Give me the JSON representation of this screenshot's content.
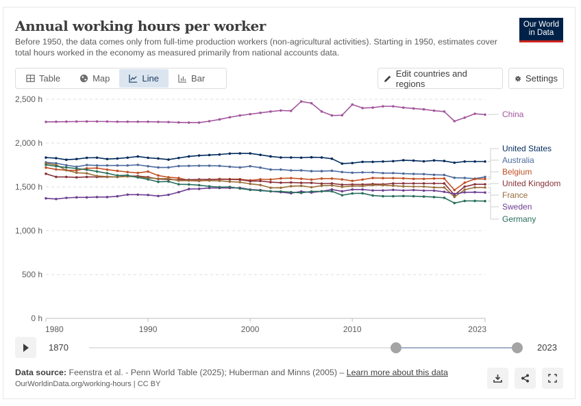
{
  "header": {
    "title": "Annual working hours per worker",
    "subtitle": "Before 1950, the data comes only from full-time production workers (non-agricultural activities). Starting in 1950, estimates cover total hours worked in the economy as measured primarily from national accounts data.",
    "logo_line1": "Our World",
    "logo_line2": "in Data"
  },
  "tabs": [
    {
      "label": "Table",
      "icon": "table-icon",
      "active": false
    },
    {
      "label": "Map",
      "icon": "globe-icon",
      "active": false
    },
    {
      "label": "Line",
      "icon": "line-chart-icon",
      "active": true
    },
    {
      "label": "Bar",
      "icon": "bar-chart-icon",
      "active": false
    }
  ],
  "toolbar": {
    "edit_label": "Edit countries and regions",
    "settings_label": "Settings"
  },
  "timeline": {
    "start_label": "1870",
    "end_label": "2023",
    "range_min": 1870,
    "range_max": 2023,
    "selected_start": 1980,
    "selected_end": 2023
  },
  "footer": {
    "source_prefix": "Data source:",
    "source_text": "Feenstra et al. - Penn World Table (2025); Huberman and Minns (2005) –",
    "learn_more": "Learn more about this data",
    "url_text": "OurWorldinData.org/working-hours | CC BY"
  },
  "chart_data": {
    "type": "line",
    "title": "Annual working hours per worker",
    "xlabel": "",
    "ylabel": "",
    "x_range": [
      1980,
      2023
    ],
    "ylim": [
      0,
      2500
    ],
    "y_ticks": [
      0,
      500,
      1000,
      1500,
      2000,
      2500
    ],
    "y_tick_labels": [
      "0 h",
      "500 h",
      "1,000 h",
      "1,500 h",
      "2,000 h",
      "2,500 h"
    ],
    "x_ticks": [
      1980,
      1990,
      2000,
      2010,
      2023
    ],
    "x_tick_labels": [
      "1980",
      "1990",
      "2000",
      "2010",
      "2023"
    ],
    "grid": "horizontal-dashed",
    "legend": "right",
    "x": [
      1980,
      1981,
      1982,
      1983,
      1984,
      1985,
      1986,
      1987,
      1988,
      1989,
      1990,
      1991,
      1992,
      1993,
      1994,
      1995,
      1996,
      1997,
      1998,
      1999,
      2000,
      2001,
      2002,
      2003,
      2004,
      2005,
      2006,
      2007,
      2008,
      2009,
      2010,
      2011,
      2012,
      2013,
      2014,
      2015,
      2016,
      2017,
      2018,
      2019,
      2020,
      2021,
      2022,
      2023
    ],
    "series": [
      {
        "name": "China",
        "color": "#a2559c",
        "values": [
          2242,
          2244,
          2245,
          2246,
          2247,
          2247,
          2246,
          2244,
          2244,
          2244,
          2244,
          2242,
          2240,
          2236,
          2234,
          2234,
          2250,
          2270,
          2295,
          2315,
          2330,
          2345,
          2360,
          2372,
          2368,
          2475,
          2455,
          2360,
          2315,
          2318,
          2440,
          2400,
          2405,
          2420,
          2420,
          2405,
          2395,
          2385,
          2370,
          2360,
          2250,
          2290,
          2335,
          2325
        ]
      },
      {
        "name": "United States",
        "color": "#00295b",
        "values": [
          1835,
          1828,
          1810,
          1818,
          1832,
          1834,
          1818,
          1824,
          1834,
          1847,
          1832,
          1824,
          1812,
          1830,
          1848,
          1858,
          1864,
          1870,
          1880,
          1882,
          1882,
          1866,
          1848,
          1836,
          1836,
          1834,
          1838,
          1836,
          1822,
          1766,
          1772,
          1786,
          1786,
          1790,
          1794,
          1804,
          1800,
          1792,
          1802,
          1796,
          1776,
          1790,
          1790,
          1790
        ]
      },
      {
        "name": "Australia",
        "color": "#4c6a9c",
        "values": [
          1780,
          1770,
          1748,
          1730,
          1750,
          1745,
          1745,
          1745,
          1745,
          1752,
          1736,
          1722,
          1722,
          1738,
          1740,
          1742,
          1742,
          1740,
          1730,
          1722,
          1736,
          1720,
          1698,
          1698,
          1688,
          1688,
          1680,
          1680,
          1684,
          1670,
          1662,
          1666,
          1666,
          1658,
          1658,
          1652,
          1648,
          1646,
          1638,
          1636,
          1604,
          1602,
          1594,
          1614
        ]
      },
      {
        "name": "Belgium",
        "color": "#c15023",
        "values": [
          1720,
          1700,
          1690,
          1688,
          1712,
          1715,
          1697,
          1683,
          1670,
          1660,
          1675,
          1630,
          1610,
          1602,
          1574,
          1567,
          1582,
          1590,
          1588,
          1588,
          1575,
          1587,
          1585,
          1597,
          1600,
          1593,
          1584,
          1595,
          1595,
          1586,
          1569,
          1584,
          1602,
          1600,
          1600,
          1598,
          1592,
          1592,
          1596,
          1596,
          1464,
          1548,
          1590,
          1590
        ]
      },
      {
        "name": "United Kingdom",
        "color": "#883039",
        "values": [
          1650,
          1614,
          1614,
          1609,
          1614,
          1614,
          1614,
          1614,
          1624,
          1624,
          1612,
          1590,
          1584,
          1582,
          1582,
          1586,
          1586,
          1586,
          1586,
          1582,
          1566,
          1568,
          1554,
          1548,
          1550,
          1546,
          1546,
          1538,
          1540,
          1525,
          1528,
          1528,
          1533,
          1530,
          1540,
          1540,
          1540,
          1540,
          1540,
          1540,
          1408,
          1503,
          1530,
          1530
        ]
      },
      {
        "name": "France",
        "color": "#996d39",
        "values": [
          1768,
          1752,
          1690,
          1662,
          1655,
          1625,
          1618,
          1614,
          1620,
          1614,
          1602,
          1595,
          1594,
          1572,
          1572,
          1572,
          1572,
          1570,
          1560,
          1554,
          1535,
          1522,
          1490,
          1490,
          1508,
          1512,
          1496,
          1514,
          1518,
          1500,
          1510,
          1510,
          1520,
          1520,
          1514,
          1506,
          1504,
          1504,
          1494,
          1494,
          1386,
          1468,
          1494,
          1494
        ]
      },
      {
        "name": "Sweden",
        "color": "#6d3e91",
        "values": [
          1370,
          1362,
          1375,
          1380,
          1380,
          1384,
          1384,
          1393,
          1412,
          1412,
          1408,
          1396,
          1410,
          1440,
          1476,
          1478,
          1488,
          1488,
          1488,
          1490,
          1470,
          1463,
          1450,
          1440,
          1428,
          1448,
          1436,
          1450,
          1470,
          1450,
          1470,
          1470,
          1460,
          1460,
          1466,
          1460,
          1464,
          1458,
          1458,
          1444,
          1420,
          1438,
          1440,
          1436
        ]
      },
      {
        "name": "Germany",
        "color": "#286e5b",
        "values": [
          1752,
          1736,
          1722,
          1710,
          1696,
          1676,
          1656,
          1630,
          1632,
          1608,
          1586,
          1558,
          1562,
          1530,
          1528,
          1520,
          1506,
          1498,
          1500,
          1482,
          1466,
          1458,
          1450,
          1448,
          1440,
          1432,
          1448,
          1450,
          1450,
          1405,
          1425,
          1427,
          1402,
          1394,
          1394,
          1396,
          1394,
          1390,
          1384,
          1376,
          1316,
          1340,
          1340,
          1338
        ]
      }
    ]
  }
}
